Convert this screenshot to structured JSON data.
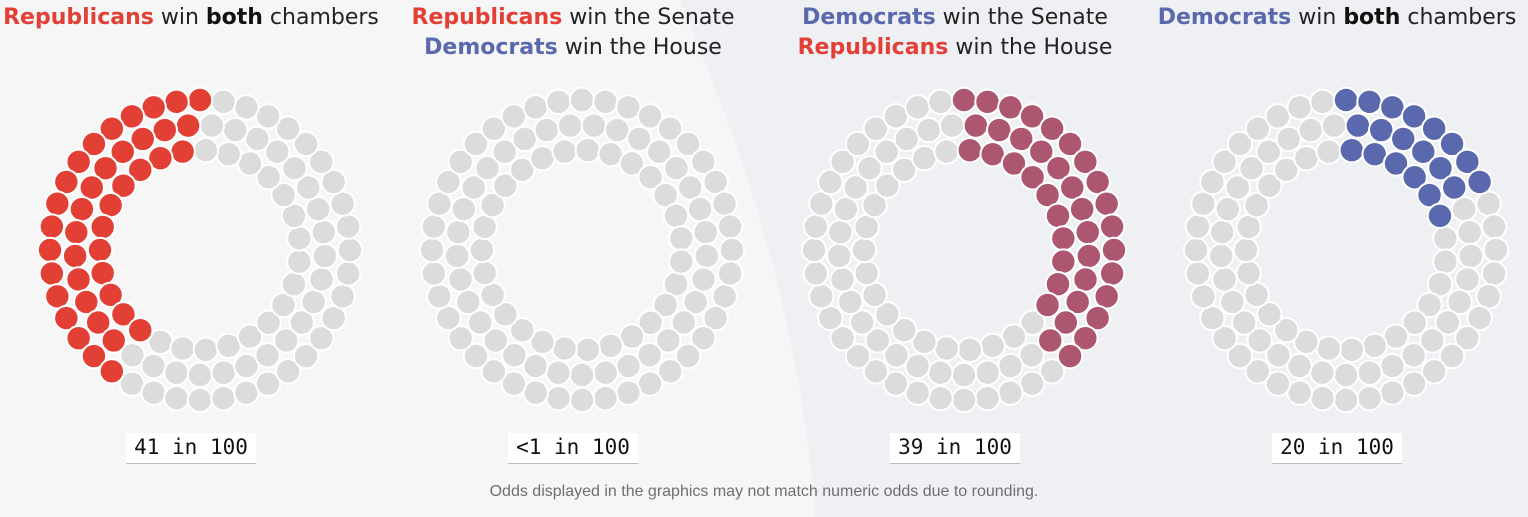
{
  "colors": {
    "republican": "#e23f35",
    "democrat": "#5a68ad",
    "split": "#ad5670",
    "empty": "#dcdcdc",
    "dot_stroke": "#ffffff",
    "background_left": "#f6f6f6",
    "background_right": "#eef0f4"
  },
  "footnote": "Odds displayed in the graphics may not match numeric odds due to rounding.",
  "chart_data": [
    {
      "type": "dot-ring",
      "scenario_line1": [
        "Republicans",
        " win ",
        "both",
        " chambers"
      ],
      "scenario_line2": [],
      "odds_label": "41 in 100",
      "value": 41,
      "total": 100,
      "fill_color": "republican"
    },
    {
      "type": "dot-ring",
      "scenario_line1": [
        "Republicans",
        " win the Senate"
      ],
      "scenario_line2": [
        "Democrats",
        " win the House"
      ],
      "odds_label": "<1 in 100",
      "value": 0,
      "total": 100,
      "fill_color": "republican"
    },
    {
      "type": "dot-ring",
      "scenario_line1": [
        "Democrats",
        " win the Senate"
      ],
      "scenario_line2": [
        "Republicans",
        " win the House"
      ],
      "odds_label": "39 in 100",
      "value": 39,
      "total": 100,
      "fill_color": "split"
    },
    {
      "type": "dot-ring",
      "scenario_line1": [
        "Democrats",
        " win ",
        "both",
        " chambers"
      ],
      "scenario_line2": [],
      "odds_label": "20 in 100",
      "value": 20,
      "total": 100,
      "fill_color": "democrat"
    }
  ]
}
